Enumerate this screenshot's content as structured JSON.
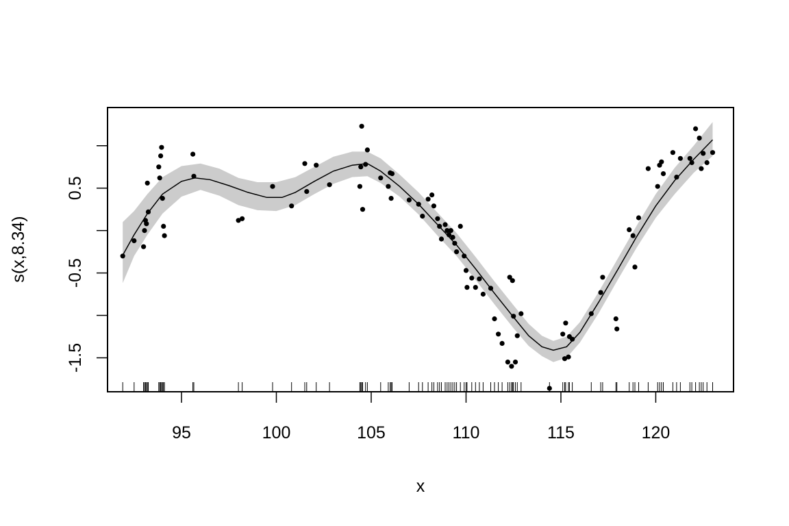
{
  "chart_data": {
    "type": "scatter",
    "title": "",
    "xlabel": "x",
    "ylabel": "s(x,8.34)",
    "xlim": [
      91.1,
      124.1
    ],
    "ylim": [
      -1.9,
      1.45
    ],
    "x_ticks": [
      95,
      100,
      105,
      110,
      115,
      120
    ],
    "x_tick_labels": [
      "95",
      "100",
      "105",
      "110",
      "115",
      "120"
    ],
    "y_ticks": [
      -1.5,
      -0.5,
      0.5
    ],
    "y_tick_labels": [
      "-1.5",
      "-0.5",
      "0.5"
    ],
    "y_minor_ticks": [
      -1.0,
      0.0,
      1.0
    ],
    "grid": false,
    "series": [
      {
        "type": "ribbon",
        "color": "#cccccc",
        "x": [
          91.9,
          92.5,
          93.2,
          94.0,
          95.0,
          96.0,
          97.0,
          98.0,
          99.0,
          100.0,
          101.0,
          102.0,
          103.0,
          104.0,
          104.8,
          105.5,
          106.5,
          107.5,
          108.5,
          109.5,
          110.5,
          111.5,
          112.5,
          113.3,
          114.0,
          114.6,
          115.3,
          116.0,
          117.0,
          118.0,
          119.0,
          120.0,
          121.0,
          122.0,
          123.0
        ],
        "lower": [
          -0.62,
          -0.3,
          -0.05,
          0.2,
          0.4,
          0.48,
          0.41,
          0.3,
          0.24,
          0.23,
          0.3,
          0.43,
          0.55,
          0.63,
          0.64,
          0.56,
          0.4,
          0.19,
          -0.06,
          -0.3,
          -0.58,
          -0.87,
          -1.15,
          -1.36,
          -1.48,
          -1.55,
          -1.5,
          -1.32,
          -0.97,
          -0.58,
          -0.2,
          0.15,
          0.43,
          0.68,
          0.88
        ],
        "upper": [
          0.1,
          0.23,
          0.43,
          0.63,
          0.76,
          0.79,
          0.73,
          0.62,
          0.57,
          0.57,
          0.63,
          0.75,
          0.87,
          0.93,
          0.93,
          0.85,
          0.66,
          0.45,
          0.21,
          -0.03,
          -0.31,
          -0.6,
          -0.88,
          -1.1,
          -1.24,
          -1.3,
          -1.25,
          -1.08,
          -0.72,
          -0.33,
          0.06,
          0.43,
          0.74,
          1.0,
          1.28
        ]
      },
      {
        "type": "line",
        "color": "#000000",
        "x": [
          91.9,
          92.5,
          93.2,
          94.0,
          95.0,
          95.7,
          96.5,
          97.5,
          98.5,
          99.5,
          100.3,
          101.0,
          102.0,
          103.0,
          104.0,
          104.8,
          105.5,
          106.5,
          107.5,
          108.5,
          109.5,
          110.5,
          111.5,
          112.5,
          113.3,
          114.0,
          114.6,
          115.3,
          116.0,
          117.0,
          118.0,
          119.0,
          120.0,
          121.0,
          122.0,
          123.0
        ],
        "y": [
          -0.29,
          -0.05,
          0.2,
          0.43,
          0.58,
          0.62,
          0.6,
          0.53,
          0.45,
          0.39,
          0.39,
          0.45,
          0.58,
          0.7,
          0.77,
          0.79,
          0.7,
          0.52,
          0.31,
          0.07,
          -0.17,
          -0.45,
          -0.74,
          -1.02,
          -1.24,
          -1.37,
          -1.41,
          -1.37,
          -1.2,
          -0.84,
          -0.46,
          -0.07,
          0.29,
          0.59,
          0.84,
          1.07
        ]
      },
      {
        "type": "scatter",
        "color": "#000000",
        "points": [
          [
            91.9,
            -0.3
          ],
          [
            92.5,
            -0.12
          ],
          [
            93.0,
            -0.19
          ],
          [
            93.05,
            0.0
          ],
          [
            93.1,
            0.12
          ],
          [
            93.15,
            0.08
          ],
          [
            93.2,
            0.56
          ],
          [
            93.25,
            0.22
          ],
          [
            93.8,
            0.75
          ],
          [
            93.85,
            0.62
          ],
          [
            93.9,
            0.88
          ],
          [
            93.95,
            0.98
          ],
          [
            94.0,
            0.38
          ],
          [
            94.05,
            0.05
          ],
          [
            94.1,
            -0.06
          ],
          [
            95.6,
            0.9
          ],
          [
            95.65,
            0.64
          ],
          [
            98.0,
            0.12
          ],
          [
            98.2,
            0.14
          ],
          [
            99.8,
            0.52
          ],
          [
            100.8,
            0.29
          ],
          [
            101.5,
            0.79
          ],
          [
            101.6,
            0.46
          ],
          [
            102.1,
            0.77
          ],
          [
            102.8,
            0.54
          ],
          [
            104.4,
            0.52
          ],
          [
            104.45,
            0.75
          ],
          [
            104.5,
            1.23
          ],
          [
            104.55,
            0.25
          ],
          [
            104.7,
            0.78
          ],
          [
            104.8,
            0.95
          ],
          [
            105.5,
            0.62
          ],
          [
            105.9,
            0.52
          ],
          [
            106.0,
            0.68
          ],
          [
            106.05,
            0.38
          ],
          [
            106.1,
            0.67
          ],
          [
            107.0,
            0.36
          ],
          [
            107.5,
            0.31
          ],
          [
            107.7,
            0.17
          ],
          [
            108.0,
            0.37
          ],
          [
            108.2,
            0.42
          ],
          [
            108.3,
            0.29
          ],
          [
            108.5,
            0.14
          ],
          [
            108.6,
            0.05
          ],
          [
            108.7,
            -0.1
          ],
          [
            108.9,
            0.07
          ],
          [
            109.0,
            0.0
          ],
          [
            109.1,
            -0.05
          ],
          [
            109.2,
            0.0
          ],
          [
            109.3,
            -0.08
          ],
          [
            109.4,
            -0.15
          ],
          [
            109.5,
            -0.25
          ],
          [
            109.7,
            0.05
          ],
          [
            109.9,
            -0.3
          ],
          [
            110.0,
            -0.47
          ],
          [
            110.05,
            -0.67
          ],
          [
            110.3,
            -0.56
          ],
          [
            110.5,
            -0.67
          ],
          [
            110.7,
            -0.57
          ],
          [
            110.9,
            -0.75
          ],
          [
            111.3,
            -0.68
          ],
          [
            111.5,
            -1.04
          ],
          [
            111.7,
            -1.22
          ],
          [
            111.9,
            -1.33
          ],
          [
            112.2,
            -1.55
          ],
          [
            112.3,
            -0.55
          ],
          [
            112.4,
            -1.6
          ],
          [
            112.45,
            -0.59
          ],
          [
            112.5,
            -1.01
          ],
          [
            112.6,
            -1.55
          ],
          [
            112.7,
            -1.24
          ],
          [
            112.9,
            -0.98
          ],
          [
            114.4,
            -1.86
          ],
          [
            115.1,
            -1.22
          ],
          [
            115.2,
            -1.51
          ],
          [
            115.25,
            -1.09
          ],
          [
            115.4,
            -1.49
          ],
          [
            115.45,
            -1.25
          ],
          [
            115.6,
            -1.28
          ],
          [
            116.6,
            -0.98
          ],
          [
            117.1,
            -0.73
          ],
          [
            117.2,
            -0.55
          ],
          [
            117.9,
            -1.04
          ],
          [
            117.95,
            -1.16
          ],
          [
            118.6,
            0.01
          ],
          [
            118.8,
            -0.06
          ],
          [
            118.9,
            -0.43
          ],
          [
            119.1,
            0.15
          ],
          [
            119.6,
            0.73
          ],
          [
            120.1,
            0.52
          ],
          [
            120.2,
            0.77
          ],
          [
            120.3,
            0.81
          ],
          [
            120.4,
            0.67
          ],
          [
            120.9,
            0.92
          ],
          [
            121.1,
            0.63
          ],
          [
            121.3,
            0.85
          ],
          [
            121.8,
            0.85
          ],
          [
            121.9,
            0.8
          ],
          [
            122.1,
            1.2
          ],
          [
            122.3,
            1.09
          ],
          [
            122.4,
            0.73
          ],
          [
            122.5,
            0.91
          ],
          [
            122.7,
            0.8
          ],
          [
            123.0,
            0.92
          ]
        ]
      }
    ],
    "rug_x": [
      91.9,
      92.5,
      93.0,
      93.05,
      93.1,
      93.15,
      93.2,
      93.25,
      93.8,
      93.85,
      93.9,
      93.95,
      94.0,
      94.05,
      94.1,
      95.6,
      95.65,
      98.0,
      98.2,
      99.8,
      100.8,
      101.5,
      101.6,
      102.1,
      102.8,
      104.4,
      104.45,
      104.5,
      104.55,
      104.7,
      104.8,
      105.5,
      105.9,
      106.0,
      106.05,
      106.1,
      107.0,
      107.5,
      107.7,
      108.0,
      108.2,
      108.3,
      108.5,
      108.6,
      108.7,
      108.9,
      109.0,
      109.1,
      109.2,
      109.3,
      109.4,
      109.5,
      109.7,
      109.9,
      110.0,
      110.05,
      110.3,
      110.5,
      110.7,
      110.9,
      111.3,
      111.5,
      111.7,
      111.9,
      112.2,
      112.3,
      112.4,
      112.45,
      112.5,
      112.6,
      112.7,
      112.9,
      114.4,
      115.1,
      115.2,
      115.25,
      115.4,
      115.45,
      115.6,
      116.6,
      117.1,
      117.2,
      117.9,
      117.95,
      118.6,
      118.8,
      118.9,
      119.1,
      119.6,
      120.1,
      120.2,
      120.3,
      120.4,
      120.9,
      121.1,
      121.3,
      121.8,
      121.9,
      122.1,
      122.3,
      122.4,
      122.5,
      122.7,
      123.0
    ]
  }
}
